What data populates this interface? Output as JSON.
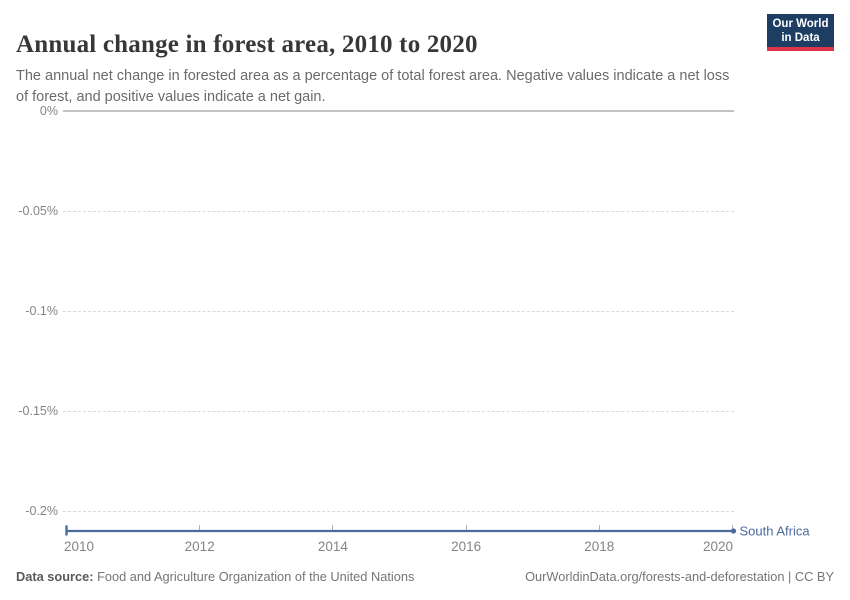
{
  "header": {
    "title": "Annual change in forest area, 2010 to 2020",
    "subtitle": "The annual net change in forested area as a percentage of total forest area. Negative values indicate a net loss of forest, and positive values indicate a net gain.",
    "logo": {
      "line1": "Our World",
      "line2": "in Data"
    }
  },
  "chart_data": {
    "type": "line",
    "title": "Annual change in forest area, 2010 to 2020",
    "xlabel": "",
    "ylabel": "",
    "unit": "%",
    "x": [
      2010,
      2011,
      2012,
      2013,
      2014,
      2015,
      2016,
      2017,
      2018,
      2019,
      2020
    ],
    "series": [
      {
        "name": "South Africa",
        "color": "#4C6A9C",
        "values": [
          -0.21,
          -0.21,
          -0.21,
          -0.21,
          -0.21,
          -0.21,
          -0.21,
          -0.21,
          -0.21,
          -0.21,
          -0.21
        ]
      }
    ],
    "xlim": [
      2010,
      2020
    ],
    "ylim": [
      -0.2,
      0
    ],
    "y_ticks": [
      {
        "value": 0,
        "label": "0%"
      },
      {
        "value": -0.05,
        "label": "-0.05%"
      },
      {
        "value": -0.1,
        "label": "-0.1%"
      },
      {
        "value": -0.15,
        "label": "-0.15%"
      },
      {
        "value": -0.2,
        "label": "-0.2%"
      }
    ],
    "x_ticks": [
      {
        "value": 2010,
        "label": "2010"
      },
      {
        "value": 2012,
        "label": "2012"
      },
      {
        "value": 2014,
        "label": "2014"
      },
      {
        "value": 2016,
        "label": "2016"
      },
      {
        "value": 2018,
        "label": "2018"
      },
      {
        "value": 2020,
        "label": "2020"
      }
    ],
    "grid": "horizontal-dashed",
    "legend_position": "end-of-line-label"
  },
  "colors": {
    "accent_line": "#4C6A9C",
    "logo_navy": "#1d3d63",
    "logo_red": "#dc354a",
    "grid_solid": "#c3c3c3",
    "grid_dashed": "#d9d9d9"
  },
  "footer": {
    "source_label": "Data source:",
    "source_text": " Food and Agriculture Organization of the United Nations",
    "right_text": "OurWorldinData.org/forests-and-deforestation | CC BY"
  }
}
